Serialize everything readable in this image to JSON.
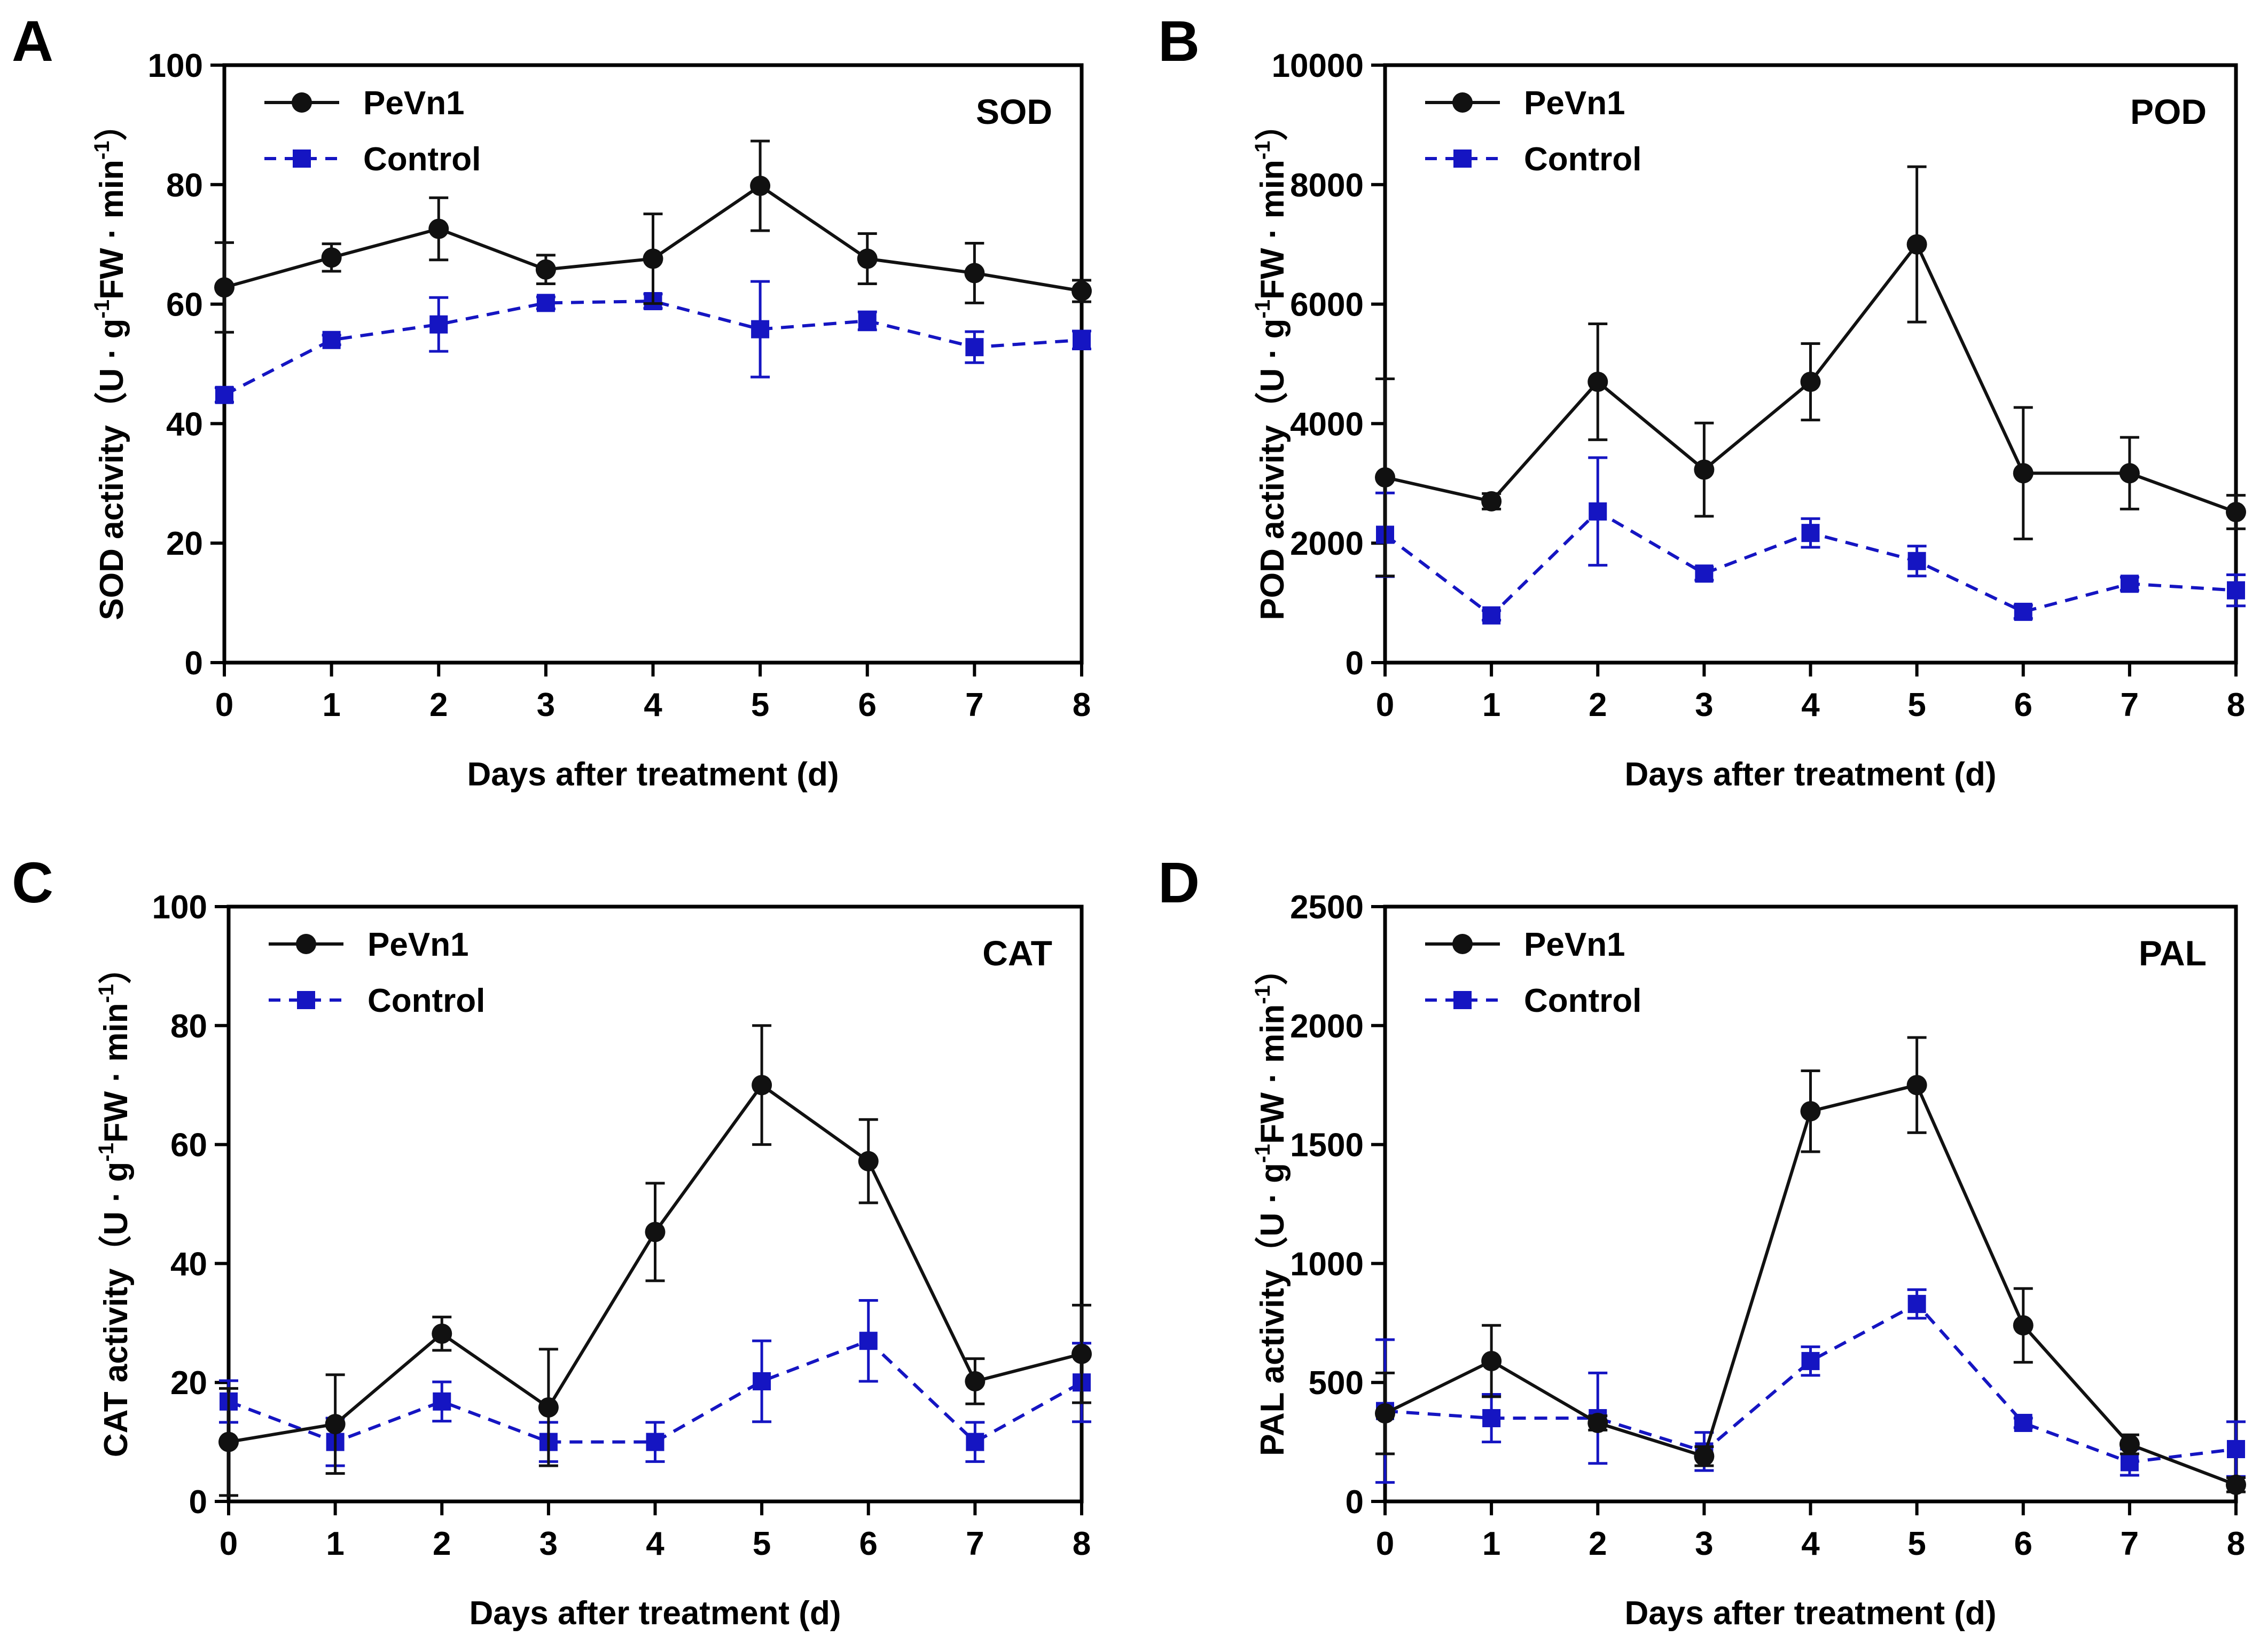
{
  "figure": {
    "x_label": "Days after treatment (d)",
    "colors": {
      "pevn1": "#111111",
      "control": "#1515c2",
      "axis": "#000000"
    }
  },
  "chart_data": [
    {
      "panel": "A",
      "type": "line",
      "title": "SOD",
      "xlabel": "Days after treatment (d)",
      "ylabel": "SOD activity（U · g-1FW · min-1）",
      "ylabel_parts": {
        "prefix": "SOD activity（U · g",
        "sup1": "-1",
        "mid": "FW · min",
        "sup2": "-1",
        "suffix": "）"
      },
      "x": [
        0,
        1,
        2,
        3,
        4,
        5,
        6,
        7,
        8
      ],
      "xlim": [
        0,
        8
      ],
      "ylim": [
        0,
        100
      ],
      "yticks": [
        0,
        20,
        40,
        60,
        80,
        100
      ],
      "legend_position": "top-left",
      "series": [
        {
          "name": "PeVn1",
          "style": "solid",
          "marker": "circle",
          "color": "#111111",
          "values": [
            62.8,
            67.8,
            72.6,
            65.8,
            67.6,
            79.8,
            67.6,
            65.2,
            62.2
          ],
          "errors": [
            7.5,
            2.3,
            5.2,
            2.4,
            7.5,
            7.5,
            4.2,
            5.0,
            1.8
          ]
        },
        {
          "name": "Control",
          "style": "dashed",
          "marker": "square",
          "color": "#1515c2",
          "values": [
            44.8,
            54.0,
            56.6,
            60.2,
            60.5,
            55.8,
            57.2,
            52.8,
            54.0
          ],
          "errors": [
            1.2,
            0.8,
            4.5,
            1.0,
            1.2,
            8.0,
            1.5,
            2.6,
            1.5
          ]
        }
      ]
    },
    {
      "panel": "B",
      "type": "line",
      "title": "POD",
      "xlabel": "Days after treatment (d)",
      "ylabel": "POD activity（U · g-1FW · min-1）",
      "ylabel_parts": {
        "prefix": "POD activity（U · g",
        "sup1": "-1",
        "mid": "FW · min",
        "sup2": "-1",
        "suffix": "）"
      },
      "x": [
        0,
        1,
        2,
        3,
        4,
        5,
        6,
        7,
        8
      ],
      "xlim": [
        0,
        8
      ],
      "ylim": [
        0,
        10000
      ],
      "yticks": [
        0,
        2000,
        4000,
        6000,
        8000,
        10000
      ],
      "legend_position": "top-left",
      "series": [
        {
          "name": "PeVn1",
          "style": "solid",
          "marker": "circle",
          "color": "#111111",
          "values": [
            3100,
            2700,
            4700,
            3230,
            4700,
            7000,
            3170,
            3170,
            2520
          ],
          "errors": [
            1650,
            130,
            970,
            780,
            640,
            1300,
            1100,
            600,
            280
          ]
        },
        {
          "name": "Control",
          "style": "dashed",
          "marker": "square",
          "color": "#1515c2",
          "values": [
            2140,
            790,
            2530,
            1490,
            2170,
            1700,
            850,
            1320,
            1210
          ],
          "errors": [
            700,
            80,
            900,
            110,
            240,
            250,
            110,
            110,
            260
          ]
        }
      ]
    },
    {
      "panel": "C",
      "type": "line",
      "title": "CAT",
      "xlabel": "Days after treatment (d)",
      "ylabel": "CAT activity（U · g-1FW · min-1）",
      "ylabel_parts": {
        "prefix": "CAT activity（U · g",
        "sup1": "-1",
        "mid": "FW · min",
        "sup2": "-1",
        "suffix": "）"
      },
      "x": [
        0,
        1,
        2,
        3,
        4,
        5,
        6,
        7,
        8
      ],
      "xlim": [
        0,
        8
      ],
      "ylim": [
        0,
        100
      ],
      "yticks": [
        0,
        20,
        40,
        60,
        80,
        100
      ],
      "legend_position": "top-left",
      "series": [
        {
          "name": "PeVn1",
          "style": "solid",
          "marker": "circle",
          "color": "#111111",
          "values": [
            10.0,
            13.0,
            28.2,
            15.8,
            45.3,
            70.0,
            57.2,
            20.2,
            24.8
          ],
          "errors": [
            9.0,
            8.3,
            2.8,
            9.8,
            8.2,
            10.0,
            7.0,
            3.8,
            8.2
          ]
        },
        {
          "name": "Control",
          "style": "dashed",
          "marker": "square",
          "color": "#1515c2",
          "values": [
            16.8,
            10.0,
            16.8,
            10.0,
            10.0,
            20.2,
            27.0,
            10.0,
            20.0
          ],
          "errors": [
            3.5,
            4.0,
            3.3,
            3.3,
            3.3,
            6.8,
            6.8,
            3.3,
            6.6
          ]
        }
      ]
    },
    {
      "panel": "D",
      "type": "line",
      "title": "PAL",
      "xlabel": "Days after treatment (d)",
      "ylabel": "PAL activity（U · g-1FW · min-1）",
      "ylabel_parts": {
        "prefix": "PAL activity（U · g",
        "sup1": "-1",
        "mid": "FW · min",
        "sup2": "-1",
        "suffix": "）"
      },
      "x": [
        0,
        1,
        2,
        3,
        4,
        5,
        6,
        7,
        8
      ],
      "xlim": [
        0,
        8
      ],
      "ylim": [
        0,
        2500
      ],
      "yticks": [
        0,
        500,
        1000,
        1500,
        2000,
        2500
      ],
      "legend_position": "top-left",
      "series": [
        {
          "name": "PeVn1",
          "style": "solid",
          "marker": "circle",
          "color": "#111111",
          "values": [
            370,
            590,
            330,
            190,
            1640,
            1750,
            740,
            240,
            70
          ],
          "errors": [
            170,
            150,
            30,
            40,
            170,
            200,
            155,
            40,
            30
          ]
        },
        {
          "name": "Control",
          "style": "dashed",
          "marker": "square",
          "color": "#1515c2",
          "values": [
            380,
            350,
            350,
            210,
            590,
            830,
            330,
            165,
            220
          ],
          "errors": [
            300,
            100,
            190,
            80,
            60,
            60,
            20,
            55,
            115
          ]
        }
      ]
    }
  ]
}
